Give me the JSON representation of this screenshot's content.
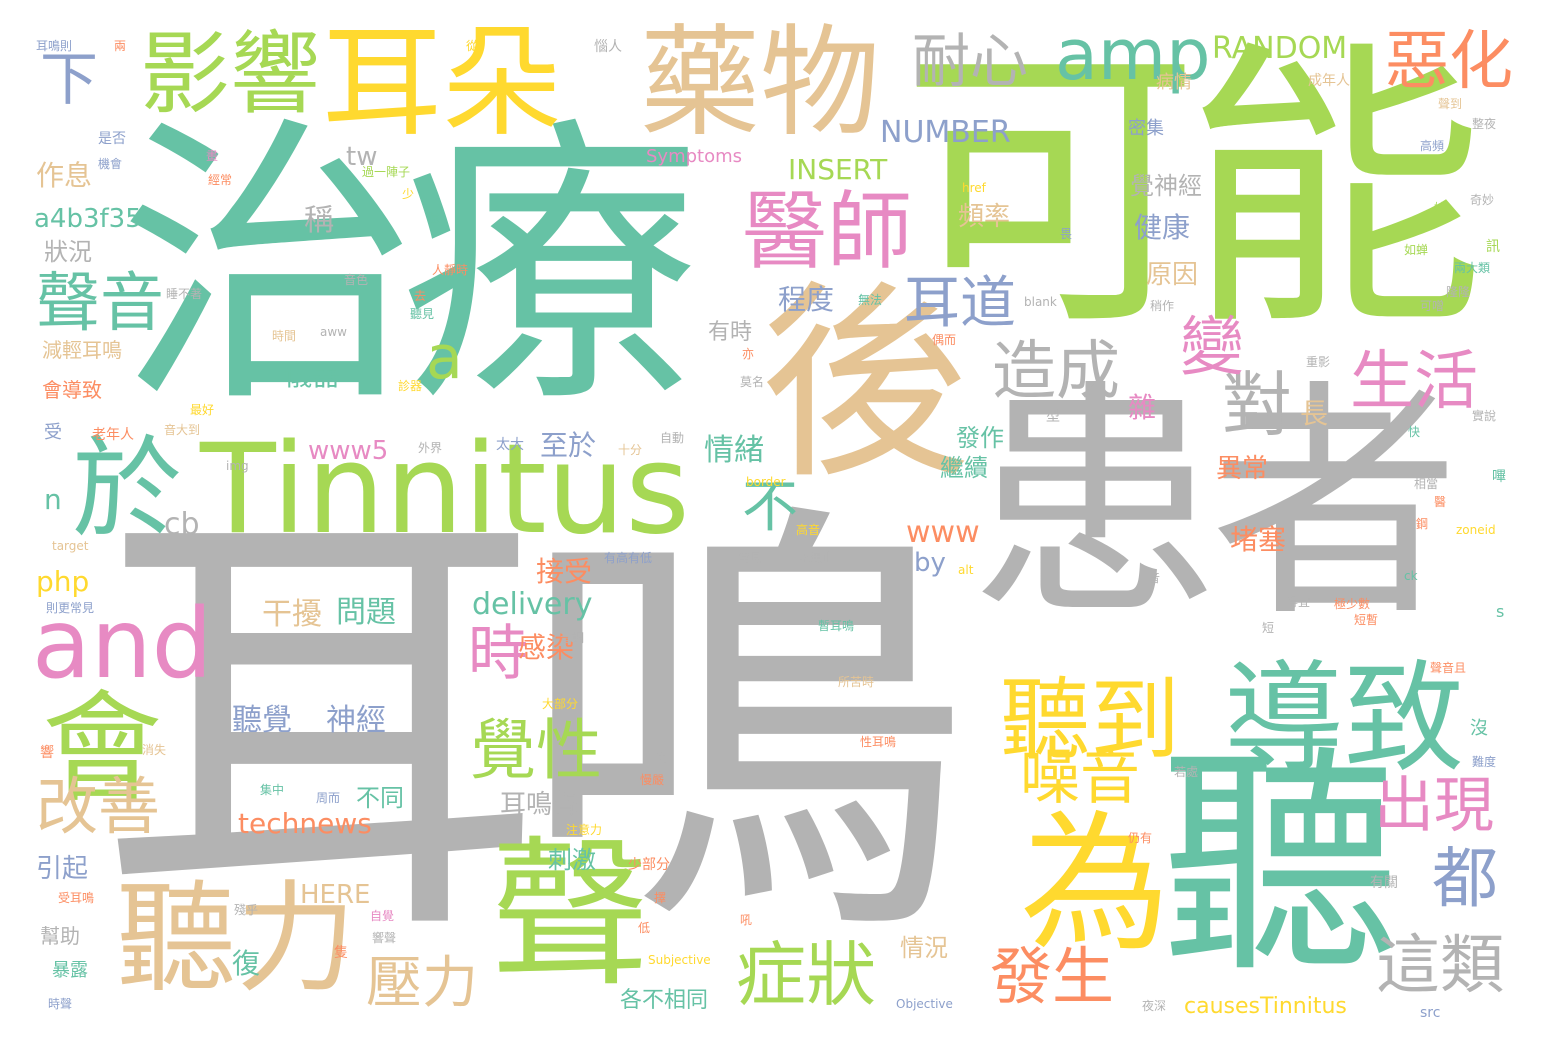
{
  "colors": {
    "green": "#a6d854",
    "teal": "#66c2a5",
    "gray": "#b3b3b3",
    "yellow": "#ffd92f",
    "tan": "#e5c494",
    "orange": "#fc8d62",
    "blue": "#8da0cb",
    "pink": "#e78ac3"
  },
  "words": [
    {
      "text": "耳鳴",
      "color": "gray"
    },
    {
      "text": "治療",
      "color": "teal"
    },
    {
      "text": "可能",
      "color": "green"
    },
    {
      "text": "患者",
      "color": "gray"
    },
    {
      "text": "後",
      "color": "tan"
    },
    {
      "text": "Tinnitus",
      "color": "green"
    },
    {
      "text": "聽",
      "color": "teal"
    },
    {
      "text": "耳朵",
      "color": "yellow"
    },
    {
      "text": "藥物",
      "color": "tan"
    },
    {
      "text": "影響",
      "color": "green"
    },
    {
      "text": "聲",
      "color": "green"
    },
    {
      "text": "導致",
      "color": "teal"
    },
    {
      "text": "為",
      "color": "yellow"
    },
    {
      "text": "聽力",
      "color": "tan"
    },
    {
      "text": "會",
      "color": "green"
    },
    {
      "text": "聽到",
      "color": "yellow"
    },
    {
      "text": "醫師",
      "color": "pink"
    },
    {
      "text": "and",
      "color": "pink"
    },
    {
      "text": "於",
      "color": "teal"
    },
    {
      "text": "amp",
      "color": "teal"
    },
    {
      "text": "惡化",
      "color": "orange"
    },
    {
      "text": "耐心",
      "color": "gray"
    },
    {
      "text": "下",
      "color": "blue"
    },
    {
      "text": "聲音",
      "color": "teal"
    },
    {
      "text": "造成",
      "color": "gray"
    },
    {
      "text": "對",
      "color": "gray"
    },
    {
      "text": "生活",
      "color": "pink"
    },
    {
      "text": "變",
      "color": "pink"
    },
    {
      "text": "耳道",
      "color": "blue"
    },
    {
      "text": "a",
      "color": "green"
    },
    {
      "text": "不",
      "color": "teal"
    },
    {
      "text": "症狀",
      "color": "green"
    },
    {
      "text": "覺性",
      "color": "green"
    },
    {
      "text": "時",
      "color": "pink"
    },
    {
      "text": "噪音",
      "color": "yellow"
    },
    {
      "text": "出現",
      "color": "pink"
    },
    {
      "text": "都",
      "color": "blue"
    },
    {
      "text": "改善",
      "color": "tan"
    },
    {
      "text": "壓力",
      "color": "tan"
    },
    {
      "text": "發生",
      "color": "orange"
    },
    {
      "text": "這類",
      "color": "gray"
    },
    {
      "text": "RANDOM",
      "color": "green"
    },
    {
      "text": "NUMBER",
      "color": "blue"
    },
    {
      "text": "INSERT",
      "color": "green"
    },
    {
      "text": "Symptoms",
      "color": "pink"
    },
    {
      "text": "a4b3f35b",
      "color": "teal"
    },
    {
      "text": "tw",
      "color": "gray"
    },
    {
      "text": "作息",
      "color": "tan"
    },
    {
      "text": "狀況",
      "color": "gray"
    },
    {
      "text": "稱",
      "color": "gray"
    },
    {
      "text": "頻率",
      "color": "tan"
    },
    {
      "text": "覺神經",
      "color": "gray"
    },
    {
      "text": "健康",
      "color": "blue"
    },
    {
      "text": "原因",
      "color": "tan"
    },
    {
      "text": "程度",
      "color": "blue"
    },
    {
      "text": "儀器",
      "color": "teal"
    },
    {
      "text": "www5",
      "color": "pink"
    },
    {
      "text": "至於",
      "color": "blue"
    },
    {
      "text": "情緒",
      "color": "teal"
    },
    {
      "text": "發作",
      "color": "teal"
    },
    {
      "text": "繼續",
      "color": "teal"
    },
    {
      "text": "異常",
      "color": "orange"
    },
    {
      "text": "www",
      "color": "orange"
    },
    {
      "text": "by",
      "color": "blue"
    },
    {
      "text": "堵塞",
      "color": "orange"
    },
    {
      "text": "php",
      "color": "yellow"
    },
    {
      "text": "delivery",
      "color": "teal"
    },
    {
      "text": "接受",
      "color": "orange"
    },
    {
      "text": "干擾",
      "color": "tan"
    },
    {
      "text": "問題",
      "color": "teal"
    },
    {
      "text": "聽覺",
      "color": "blue"
    },
    {
      "text": "神經",
      "color": "blue"
    },
    {
      "text": "耳鳴聲",
      "color": "gray"
    },
    {
      "text": "不同",
      "color": "teal"
    },
    {
      "text": "technews",
      "color": "orange"
    },
    {
      "text": "HERE",
      "color": "tan"
    },
    {
      "text": "刺激",
      "color": "teal"
    },
    {
      "text": "引起",
      "color": "blue"
    },
    {
      "text": "感染",
      "color": "orange"
    },
    {
      "text": "復",
      "color": "teal"
    },
    {
      "text": "情況",
      "color": "tan"
    },
    {
      "text": "各不相同",
      "color": "teal"
    },
    {
      "text": "causesTinnitus",
      "color": "yellow"
    },
    {
      "text": "cb",
      "color": "gray"
    },
    {
      "text": "n",
      "color": "teal"
    },
    {
      "text": "長",
      "color": "tan"
    },
    {
      "text": "雜",
      "color": "pink"
    },
    {
      "text": "有時",
      "color": "gray"
    },
    {
      "text": "減輕耳鳴",
      "color": "tan"
    },
    {
      "text": "會導致",
      "color": "orange"
    },
    {
      "text": "幫助",
      "color": "gray"
    },
    {
      "text": "暴露",
      "color": "teal"
    },
    {
      "text": "受",
      "color": "blue"
    },
    {
      "text": "病情",
      "color": "tan"
    },
    {
      "text": "密集",
      "color": "blue"
    },
    {
      "text": "成年人",
      "color": "tan"
    },
    {
      "text": "耳鳴則",
      "color": "blue"
    },
    {
      "text": "是否",
      "color": "blue"
    },
    {
      "text": "機會",
      "color": "blue"
    },
    {
      "text": "經常",
      "color": "orange"
    },
    {
      "text": "過一陣子",
      "color": "green"
    },
    {
      "text": "少",
      "color": "yellow"
    },
    {
      "text": "還",
      "color": "teal"
    },
    {
      "text": "人靜時",
      "color": "orange"
    },
    {
      "text": "無法",
      "color": "teal"
    },
    {
      "text": "聽見",
      "color": "teal"
    },
    {
      "text": "去",
      "color": "orange"
    },
    {
      "text": "音色",
      "color": "gray"
    },
    {
      "text": "睡不著",
      "color": "gray"
    },
    {
      "text": "時間",
      "color": "tan"
    },
    {
      "text": "最好",
      "color": "yellow"
    },
    {
      "text": "老年人",
      "color": "orange"
    },
    {
      "text": "音大到",
      "color": "tan"
    },
    {
      "text": "外界",
      "color": "gray"
    },
    {
      "text": "太大",
      "color": "blue"
    },
    {
      "text": "十分",
      "color": "tan"
    },
    {
      "text": "自動",
      "color": "gray"
    },
    {
      "text": "高音",
      "color": "yellow"
    },
    {
      "text": "常見",
      "color": "gray"
    },
    {
      "text": "永無止",
      "color": "gray"
    },
    {
      "text": "有高有低",
      "color": "blue"
    },
    {
      "text": "target",
      "color": "tan"
    },
    {
      "text": "則更常見",
      "color": "blue"
    },
    {
      "text": "img",
      "color": "gray"
    },
    {
      "text": "border",
      "color": "yellow"
    },
    {
      "text": "alt",
      "color": "yellow"
    },
    {
      "text": "ck",
      "color": "teal"
    },
    {
      "text": "s",
      "color": "teal"
    },
    {
      "text": "zoneid",
      "color": "yellow"
    },
    {
      "text": "href",
      "color": "yellow"
    },
    {
      "text": "blank",
      "color": "gray"
    },
    {
      "text": "src",
      "color": "blue"
    },
    {
      "text": "Objective",
      "color": "blue"
    },
    {
      "text": "Subjective",
      "color": "yellow"
    },
    {
      "text": "夜深",
      "color": "gray"
    },
    {
      "text": "聲到",
      "color": "tan"
    },
    {
      "text": "整夜",
      "color": "gray"
    },
    {
      "text": "高頻",
      "color": "blue"
    },
    {
      "text": "奇妙",
      "color": "gray"
    },
    {
      "text": "兩大類",
      "color": "teal"
    },
    {
      "text": "隆隆",
      "color": "gray"
    },
    {
      "text": "可噌",
      "color": "gray"
    },
    {
      "text": "稍作",
      "color": "gray"
    },
    {
      "text": "偶而",
      "color": "orange"
    },
    {
      "text": "如蝉",
      "color": "green"
    },
    {
      "text": "重影",
      "color": "gray"
    },
    {
      "text": "型",
      "color": "gray"
    },
    {
      "text": "快",
      "color": "teal"
    },
    {
      "text": "相當",
      "color": "gray"
    },
    {
      "text": "得宜",
      "color": "gray"
    },
    {
      "text": "極少數",
      "color": "orange"
    },
    {
      "text": "短暫",
      "color": "orange"
    },
    {
      "text": "聲音且",
      "color": "orange"
    },
    {
      "text": "若處",
      "color": "gray"
    },
    {
      "text": "難度",
      "color": "blue"
    },
    {
      "text": "有關",
      "color": "gray"
    },
    {
      "text": "所苦時",
      "color": "tan"
    },
    {
      "text": "性耳鳴",
      "color": "orange"
    },
    {
      "text": "注意力",
      "color": "yellow"
    },
    {
      "text": "仍有",
      "color": "orange"
    },
    {
      "text": "少部分",
      "color": "orange"
    },
    {
      "text": "大部分",
      "color": "yellow"
    },
    {
      "text": "消失",
      "color": "tan"
    },
    {
      "text": "響聲",
      "color": "gray"
    },
    {
      "text": "受耳鳴",
      "color": "orange"
    },
    {
      "text": "自覺",
      "color": "pink"
    },
    {
      "text": "殘乎",
      "color": "gray"
    },
    {
      "text": "集中",
      "color": "teal"
    },
    {
      "text": "周而",
      "color": "blue"
    },
    {
      "text": "音調",
      "color": "gray"
    },
    {
      "text": "暫耳鳴",
      "color": "teal"
    },
    {
      "text": "時聲",
      "color": "blue"
    },
    {
      "text": "莫名",
      "color": "gray"
    },
    {
      "text": "兩",
      "color": "orange"
    },
    {
      "text": "從",
      "color": "yellow"
    },
    {
      "text": "惱人",
      "color": "gray"
    },
    {
      "text": "aww",
      "color": "gray"
    },
    {
      "text": "亦",
      "color": "orange"
    },
    {
      "text": "畫",
      "color": "pink"
    },
    {
      "text": "診器",
      "color": "yellow"
    },
    {
      "text": "吼",
      "color": "orange"
    },
    {
      "text": "低",
      "color": "orange"
    },
    {
      "text": "擇",
      "color": "orange"
    },
    {
      "text": "隻",
      "color": "orange"
    },
    {
      "text": "響",
      "color": "orange"
    },
    {
      "text": "沒",
      "color": "teal"
    },
    {
      "text": "訊",
      "color": "green"
    },
    {
      "text": "始",
      "color": "green"
    },
    {
      "text": "實說",
      "color": "gray"
    },
    {
      "text": "嗶",
      "color": "teal"
    },
    {
      "text": "醫",
      "color": "orange"
    },
    {
      "text": "短",
      "color": "gray"
    },
    {
      "text": "音",
      "color": "gray"
    },
    {
      "text": "兒",
      "color": "gray"
    },
    {
      "text": "慢嚴",
      "color": "orange"
    },
    {
      "text": "畏",
      "color": "blue"
    },
    {
      "text": "鋼",
      "color": "orange"
    }
  ]
}
